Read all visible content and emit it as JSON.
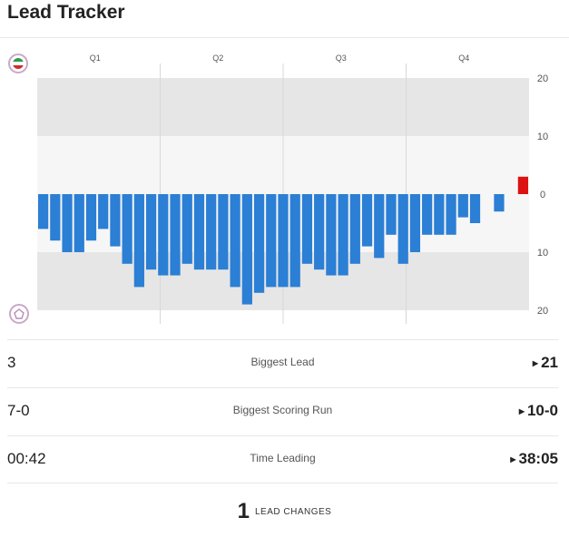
{
  "header": {
    "title": "Lead Tracker"
  },
  "teams": {
    "top": {
      "logo": "iran-flag-logo"
    },
    "bottom": {
      "logo": "team-crest-logo"
    }
  },
  "colors": {
    "away_lead": "#2b7fd4",
    "home_lead": "#dd1111",
    "band": "#e6e6e6"
  },
  "chart_data": {
    "type": "bar",
    "quarters": [
      "Q1",
      "Q2",
      "Q3",
      "Q4"
    ],
    "y_ticks": [
      "20",
      "10",
      "0",
      "10",
      "20"
    ],
    "ylim": [
      -20,
      20
    ],
    "grid": true,
    "series": [
      {
        "values": [
          -6,
          -8,
          -10,
          -10,
          -8,
          -6,
          -9,
          -12,
          -16,
          -13,
          -14,
          -14,
          -12,
          -13,
          -13,
          -13,
          -16,
          -19,
          -17,
          -16,
          -16,
          -16,
          -12,
          -13,
          -14,
          -14,
          -12,
          -9,
          -11,
          -7,
          -12,
          -10,
          -7,
          -7,
          -7,
          -4,
          -5,
          0,
          -3,
          0,
          3
        ]
      }
    ]
  },
  "stats": [
    {
      "label": "Biggest Lead",
      "left": "3",
      "right": "21"
    },
    {
      "label": "Biggest Scoring Run",
      "left": "7-0",
      "right": "10-0"
    },
    {
      "label": "Time Leading",
      "left": "00:42",
      "right": "38:05"
    }
  ],
  "lead_changes": {
    "count": "1",
    "label": "LEAD CHANGES"
  }
}
